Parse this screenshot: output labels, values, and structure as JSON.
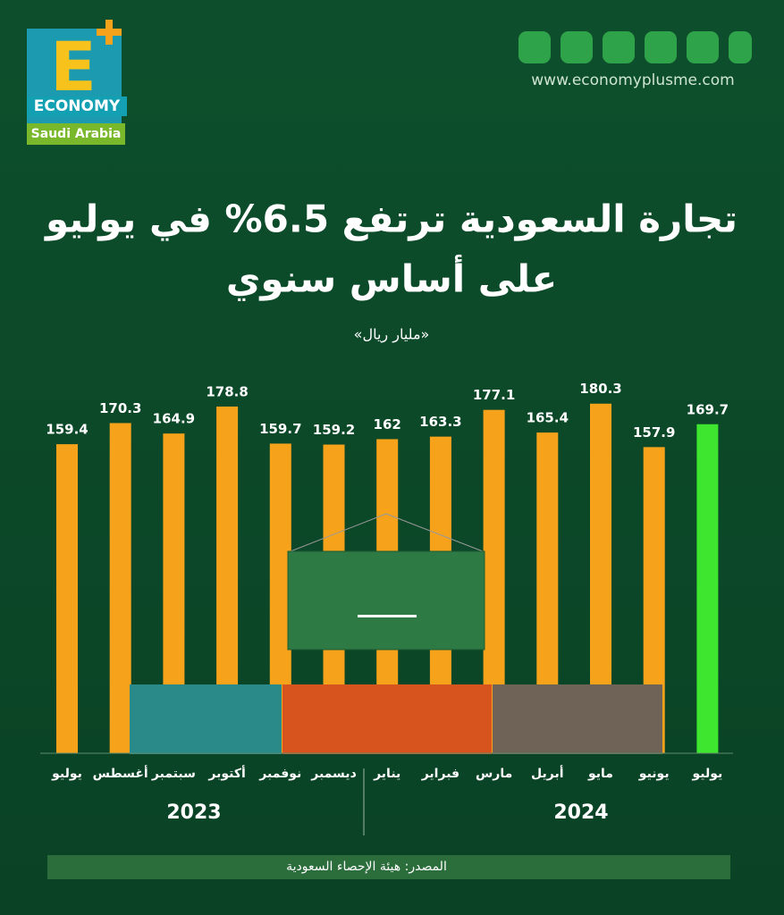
{
  "logo": {
    "letter": "E",
    "name": "ECONOMY",
    "region": "Saudi Arabia"
  },
  "website": "www.economyplusme.com",
  "chart_data": {
    "type": "bar",
    "title": [
      "تجارة السعودية ترتفع 6.5% في يوليو",
      "على أساس سنوي"
    ],
    "subtitle": "«مليار ريال»",
    "categories": [
      "يوليو",
      "أغسطس",
      "سبتمبر",
      "أكتوبر",
      "نوفمبر",
      "ديسمبر",
      "يناير",
      "فبراير",
      "مارس",
      "أبريل",
      "مايو",
      "يونيو",
      "يوليو"
    ],
    "values": [
      159.4,
      170.3,
      164.9,
      178.8,
      159.7,
      159.2,
      162,
      163.3,
      177.1,
      165.4,
      180.3,
      157.9,
      169.7
    ],
    "colors": [
      "#f7a21b",
      "#f7a21b",
      "#f7a21b",
      "#f7a21b",
      "#f7a21b",
      "#f7a21b",
      "#f7a21b",
      "#f7a21b",
      "#f7a21b",
      "#f7a21b",
      "#f7a21b",
      "#f7a21b",
      "#3ee62f"
    ],
    "groups": [
      "2023",
      "2024"
    ],
    "source": "المصدر: هيئة الإحصاء السعودية"
  }
}
